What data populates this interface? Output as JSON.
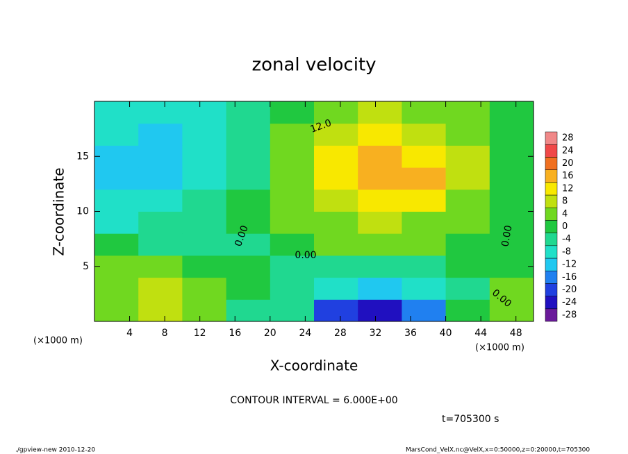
{
  "chart_data": {
    "type": "heatmap",
    "title": "zonal velocity",
    "x_label": "X-coordinate",
    "y_label": "Z-coordinate",
    "x_unit": "(×1000 m)",
    "x": [
      2.5,
      7.5,
      12.5,
      17.5,
      22.5,
      27.5,
      32.5,
      37.5,
      42.5,
      47.5
    ],
    "z": [
      1,
      3,
      5,
      7,
      9,
      11,
      13,
      15,
      17,
      19
    ],
    "values": [
      [
        4,
        8,
        6,
        -2,
        -4,
        -20,
        -24,
        -14,
        0,
        4
      ],
      [
        6,
        8,
        6,
        0,
        -2,
        -8,
        -10,
        -8,
        -2,
        4
      ],
      [
        4,
        4,
        2,
        0,
        -2,
        -4,
        -4,
        -2,
        2,
        0
      ],
      [
        2,
        -2,
        -2,
        -2,
        2,
        4,
        4,
        4,
        2,
        0
      ],
      [
        -6,
        -4,
        -2,
        0,
        4,
        6,
        8,
        6,
        4,
        2
      ],
      [
        -8,
        -6,
        -4,
        0,
        4,
        10,
        14,
        12,
        6,
        2
      ],
      [
        -10,
        -10,
        -6,
        -2,
        6,
        14,
        18,
        16,
        8,
        2
      ],
      [
        -10,
        -10,
        -6,
        -2,
        6,
        14,
        16,
        14,
        8,
        2
      ],
      [
        -8,
        -10,
        -6,
        -2,
        4,
        10,
        12,
        10,
        6,
        2
      ],
      [
        -6,
        -8,
        -6,
        -2,
        2,
        6,
        8,
        6,
        4,
        2
      ]
    ],
    "xlim": [
      0,
      50
    ],
    "xticks": [
      4,
      8,
      12,
      16,
      20,
      24,
      28,
      32,
      36,
      40,
      44,
      48
    ],
    "ylim": [
      0,
      20
    ],
    "yticks": [
      5,
      10,
      15
    ],
    "colorbar": {
      "lim": [
        -30,
        30
      ],
      "ticks": [
        -28,
        -24,
        -20,
        -16,
        -12,
        -8,
        -4,
        0,
        4,
        8,
        12,
        16,
        20,
        24,
        28
      ],
      "colors": [
        "#6a1a9a",
        "#2010c0",
        "#2040e0",
        "#2080f0",
        "#20c8f0",
        "#20e0c8",
        "#20d890",
        "#20c840",
        "#70d820",
        "#c0e010",
        "#f8e800",
        "#f8b020",
        "#f07020",
        "#f04848",
        "#f08888"
      ]
    },
    "contour_labels": [
      "12.0",
      "0.00",
      "0.00",
      "0.00",
      "0.00"
    ],
    "contour_interval": "CONTOUR INTERVAL = 6.000E+00",
    "time": "t=705300 s",
    "footer_left": "./gpview-new  2010-12-20",
    "footer_right": "MarsCond_VelX.nc@VelX,x=0:50000,z=0:20000,t=705300"
  }
}
